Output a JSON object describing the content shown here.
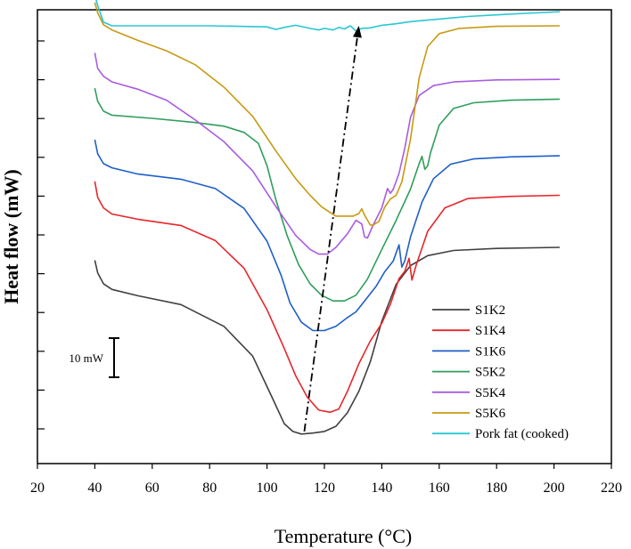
{
  "chart_data": {
    "type": "line",
    "title": "",
    "xlabel": "Temperature (°C)",
    "ylabel": "Heat flow (mW)",
    "xlim": [
      20,
      220
    ],
    "xticks": [
      20,
      40,
      60,
      80,
      100,
      120,
      140,
      160,
      180,
      200,
      220
    ],
    "ytick_labels": "none",
    "scale_bar_label": "10 mW",
    "legend_position": "bottom-right",
    "grid": false,
    "series": [
      {
        "name": "S1K2",
        "color": "#404040",
        "points": [
          [
            40,
            -45.1
          ],
          [
            41,
            -47.5
          ],
          [
            43,
            -49.6
          ],
          [
            46,
            -50.7
          ],
          [
            55,
            -51.9
          ],
          [
            70,
            -53.6
          ],
          [
            85,
            -57.8
          ],
          [
            95,
            -63.5
          ],
          [
            102,
            -71.7
          ],
          [
            106,
            -76.5
          ],
          [
            109,
            -78.0
          ],
          [
            112,
            -78.5
          ],
          [
            116,
            -78.3
          ],
          [
            120,
            -78.0
          ],
          [
            124,
            -77.0
          ],
          [
            128,
            -74.4
          ],
          [
            132,
            -70.3
          ],
          [
            136,
            -64.6
          ],
          [
            140,
            -56.8
          ],
          [
            145,
            -49.7
          ],
          [
            150,
            -46.1
          ],
          [
            156,
            -44.2
          ],
          [
            165,
            -43.2
          ],
          [
            180,
            -42.8
          ],
          [
            202,
            -42.6
          ]
        ]
      },
      {
        "name": "S1K4",
        "color": "#e8262b",
        "points": [
          [
            40,
            -29.9
          ],
          [
            41,
            -33.0
          ],
          [
            43,
            -35.0
          ],
          [
            46,
            -36.2
          ],
          [
            55,
            -37.2
          ],
          [
            70,
            -38.4
          ],
          [
            82,
            -41.3
          ],
          [
            92,
            -46.6
          ],
          [
            100,
            -54.6
          ],
          [
            106,
            -62.0
          ],
          [
            110,
            -67.3
          ],
          [
            114,
            -71.4
          ],
          [
            118,
            -73.9
          ],
          [
            122,
            -74.3
          ],
          [
            125,
            -73.7
          ],
          [
            128,
            -70.3
          ],
          [
            132,
            -65.0
          ],
          [
            136,
            -60.6
          ],
          [
            140,
            -57.2
          ],
          [
            143,
            -53.5
          ],
          [
            146,
            -48.6
          ],
          [
            148,
            -47.2
          ],
          [
            149.5,
            -44.7
          ],
          [
            150.5,
            -48.9
          ],
          [
            152,
            -46.0
          ],
          [
            156,
            -39.5
          ],
          [
            162,
            -35.0
          ],
          [
            170,
            -33.2
          ],
          [
            185,
            -32.8
          ],
          [
            202,
            -32.6
          ]
        ]
      },
      {
        "name": "S1K6",
        "color": "#1f5fc8",
        "points": [
          [
            40,
            -21.9
          ],
          [
            41,
            -24.6
          ],
          [
            43,
            -26.5
          ],
          [
            46,
            -27.3
          ],
          [
            55,
            -28.5
          ],
          [
            70,
            -29.5
          ],
          [
            82,
            -31.3
          ],
          [
            92,
            -35.1
          ],
          [
            100,
            -41.4
          ],
          [
            105,
            -48.1
          ],
          [
            108,
            -53.3
          ],
          [
            112,
            -57.0
          ],
          [
            116,
            -58.6
          ],
          [
            120,
            -58.6
          ],
          [
            124,
            -57.8
          ],
          [
            128,
            -56.1
          ],
          [
            131,
            -55.0
          ],
          [
            134,
            -52.9
          ],
          [
            138,
            -50.1
          ],
          [
            141,
            -47.3
          ],
          [
            144,
            -45.2
          ],
          [
            146,
            -42.1
          ],
          [
            147,
            -46.4
          ],
          [
            148,
            -45.2
          ],
          [
            150,
            -40.6
          ],
          [
            154,
            -33.9
          ],
          [
            158,
            -29.4
          ],
          [
            164,
            -26.6
          ],
          [
            172,
            -25.6
          ],
          [
            185,
            -25.2
          ],
          [
            202,
            -25.0
          ]
        ]
      },
      {
        "name": "S5K2",
        "color": "#2f9e5c",
        "points": [
          [
            40,
            -12.0
          ],
          [
            41,
            -14.5
          ],
          [
            43,
            -16.4
          ],
          [
            46,
            -17.2
          ],
          [
            60,
            -17.8
          ],
          [
            75,
            -18.6
          ],
          [
            85,
            -19.3
          ],
          [
            92,
            -20.5
          ],
          [
            97,
            -22.6
          ],
          [
            100,
            -26.9
          ],
          [
            103,
            -33.3
          ],
          [
            107,
            -40.3
          ],
          [
            111,
            -45.9
          ],
          [
            115,
            -49.6
          ],
          [
            119,
            -51.8
          ],
          [
            123,
            -52.9
          ],
          [
            127,
            -52.9
          ],
          [
            131,
            -51.8
          ],
          [
            135,
            -48.7
          ],
          [
            140,
            -43.0
          ],
          [
            145,
            -37.4
          ],
          [
            150,
            -31.4
          ],
          [
            153,
            -26.5
          ],
          [
            154,
            -25.1
          ],
          [
            155,
            -27.6
          ],
          [
            156,
            -26.9
          ],
          [
            157,
            -24.4
          ],
          [
            160,
            -19.1
          ],
          [
            165,
            -15.9
          ],
          [
            172,
            -14.8
          ],
          [
            185,
            -14.3
          ],
          [
            202,
            -14.1
          ]
        ]
      },
      {
        "name": "S5K4",
        "color": "#a95ce0",
        "points": [
          [
            40,
            -5.2
          ],
          [
            41,
            -8.2
          ],
          [
            43,
            -9.7
          ],
          [
            46,
            -10.8
          ],
          [
            55,
            -12.2
          ],
          [
            65,
            -14.3
          ],
          [
            75,
            -18.1
          ],
          [
            85,
            -22.3
          ],
          [
            95,
            -27.9
          ],
          [
            103,
            -34.7
          ],
          [
            110,
            -40.3
          ],
          [
            115,
            -43.0
          ],
          [
            118,
            -43.9
          ],
          [
            121,
            -43.9
          ],
          [
            124,
            -42.6
          ],
          [
            128,
            -40.0
          ],
          [
            131,
            -37.4
          ],
          [
            133,
            -38.1
          ],
          [
            134,
            -40.6
          ],
          [
            135,
            -40.8
          ],
          [
            137,
            -38.3
          ],
          [
            140,
            -35.0
          ],
          [
            142,
            -31.3
          ],
          [
            143,
            -32.2
          ],
          [
            144,
            -31.4
          ],
          [
            146,
            -28.4
          ],
          [
            148,
            -23.5
          ],
          [
            150,
            -17.6
          ],
          [
            153,
            -13.4
          ],
          [
            158,
            -11.5
          ],
          [
            165,
            -10.8
          ],
          [
            180,
            -10.4
          ],
          [
            202,
            -10.3
          ]
        ]
      },
      {
        "name": "S5K6",
        "color": "#c79a12",
        "points": [
          [
            40,
            4.5
          ],
          [
            41,
            2.5
          ],
          [
            43,
            0.2
          ],
          [
            46,
            -0.8
          ],
          [
            55,
            -2.8
          ],
          [
            65,
            -4.8
          ],
          [
            75,
            -7.5
          ],
          [
            85,
            -11.8
          ],
          [
            95,
            -17.4
          ],
          [
            103,
            -24.0
          ],
          [
            110,
            -29.4
          ],
          [
            115,
            -32.6
          ],
          [
            119,
            -34.8
          ],
          [
            122,
            -35.9
          ],
          [
            124,
            -36.6
          ],
          [
            127,
            -36.6
          ],
          [
            130,
            -36.6
          ],
          [
            132,
            -36.1
          ],
          [
            133,
            -35.2
          ],
          [
            134,
            -36.4
          ],
          [
            136,
            -38.3
          ],
          [
            137,
            -38.3
          ],
          [
            139,
            -37.6
          ],
          [
            141,
            -34.9
          ],
          [
            143,
            -33.3
          ],
          [
            145,
            -32.6
          ],
          [
            147,
            -30.0
          ],
          [
            150,
            -21.8
          ],
          [
            153,
            -10.0
          ],
          [
            156,
            -4.0
          ],
          [
            160,
            -1.5
          ],
          [
            167,
            -0.5
          ],
          [
            180,
            -0.1
          ],
          [
            202,
            0.0
          ]
        ]
      },
      {
        "name": "Pork fat (cooked)",
        "color": "#28c7d4",
        "points": [
          [
            40,
            5.9
          ],
          [
            41,
            3.9
          ],
          [
            43,
            0.7
          ],
          [
            46,
            0.0
          ],
          [
            60,
            0.0
          ],
          [
            80,
            0.0
          ],
          [
            100,
            -0.2
          ],
          [
            103,
            -0.7
          ],
          [
            106,
            -0.3
          ],
          [
            110,
            0.1
          ],
          [
            115,
            -0.5
          ],
          [
            118,
            -0.8
          ],
          [
            120,
            -0.5
          ],
          [
            123,
            -0.8
          ],
          [
            125,
            -0.3
          ],
          [
            127,
            -0.6
          ],
          [
            129,
            0.0
          ],
          [
            131,
            -1.0
          ],
          [
            133,
            -0.5
          ],
          [
            136,
            -0.4
          ],
          [
            140,
            0.1
          ],
          [
            145,
            0.4
          ],
          [
            150,
            0.8
          ],
          [
            160,
            1.3
          ],
          [
            170,
            1.8
          ],
          [
            180,
            2.1
          ],
          [
            190,
            2.4
          ],
          [
            202,
            2.7
          ]
        ]
      }
    ],
    "annotations": [
      {
        "type": "arrow",
        "style": "dash-dot",
        "from": [
          113,
          -78.0
        ],
        "to": [
          132,
          0.0
        ]
      }
    ]
  }
}
